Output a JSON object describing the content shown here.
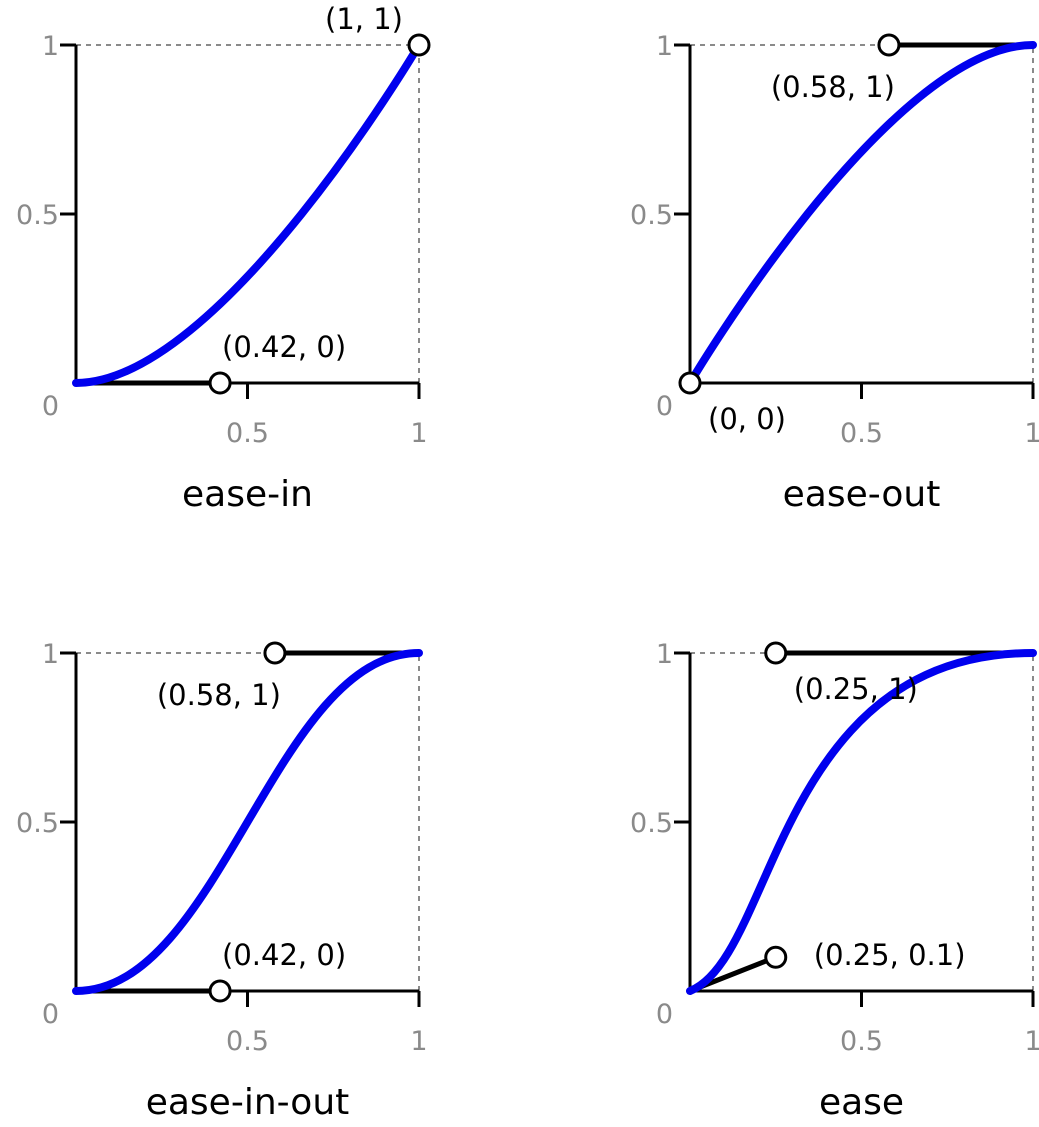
{
  "chart_data": [
    {
      "type": "line",
      "title": "ease-in",
      "xlim": [
        0,
        1
      ],
      "ylim": [
        0,
        1
      ],
      "xticks": [
        {
          "value": 0.5,
          "label": "0.5"
        },
        {
          "value": 1,
          "label": "1"
        }
      ],
      "yticks": [
        {
          "value": 0,
          "label": "0"
        },
        {
          "value": 0.5,
          "label": "0.5"
        },
        {
          "value": 1,
          "label": "1"
        }
      ],
      "bezier": {
        "p0": [
          0,
          0
        ],
        "p1": [
          0.42,
          0
        ],
        "p2": [
          1,
          1
        ],
        "p3": [
          1,
          1
        ]
      },
      "control_points": [
        {
          "x": 0.42,
          "y": 0,
          "label": "(0.42, 0)",
          "label_side": "above-right"
        },
        {
          "x": 1,
          "y": 1,
          "label": "(1, 1)",
          "label_side": "above-left"
        }
      ]
    },
    {
      "type": "line",
      "title": "ease-out",
      "xlim": [
        0,
        1
      ],
      "ylim": [
        0,
        1
      ],
      "xticks": [
        {
          "value": 0.5,
          "label": "0.5"
        },
        {
          "value": 1,
          "label": "1"
        }
      ],
      "yticks": [
        {
          "value": 0,
          "label": "0"
        },
        {
          "value": 0.5,
          "label": "0.5"
        },
        {
          "value": 1,
          "label": "1"
        }
      ],
      "bezier": {
        "p0": [
          0,
          0
        ],
        "p1": [
          0,
          0
        ],
        "p2": [
          0.58,
          1
        ],
        "p3": [
          1,
          1
        ]
      },
      "control_points": [
        {
          "x": 0,
          "y": 0,
          "label": "(0, 0)",
          "label_side": "below-right"
        },
        {
          "x": 0.58,
          "y": 1,
          "label": "(0.58, 1)",
          "label_side": "below-left"
        }
      ]
    },
    {
      "type": "line",
      "title": "ease-in-out",
      "xlim": [
        0,
        1
      ],
      "ylim": [
        0,
        1
      ],
      "xticks": [
        {
          "value": 0.5,
          "label": "0.5"
        },
        {
          "value": 1,
          "label": "1"
        }
      ],
      "yticks": [
        {
          "value": 0,
          "label": "0"
        },
        {
          "value": 0.5,
          "label": "0.5"
        },
        {
          "value": 1,
          "label": "1"
        }
      ],
      "bezier": {
        "p0": [
          0,
          0
        ],
        "p1": [
          0.42,
          0
        ],
        "p2": [
          0.58,
          1
        ],
        "p3": [
          1,
          1
        ]
      },
      "control_points": [
        {
          "x": 0.42,
          "y": 0,
          "label": "(0.42, 0)",
          "label_side": "above-right"
        },
        {
          "x": 0.58,
          "y": 1,
          "label": "(0.58, 1)",
          "label_side": "below-left"
        }
      ]
    },
    {
      "type": "line",
      "title": "ease",
      "xlim": [
        0,
        1
      ],
      "ylim": [
        0,
        1
      ],
      "xticks": [
        {
          "value": 0.5,
          "label": "0.5"
        },
        {
          "value": 1,
          "label": "1"
        }
      ],
      "yticks": [
        {
          "value": 0,
          "label": "0"
        },
        {
          "value": 0.5,
          "label": "0.5"
        },
        {
          "value": 1,
          "label": "1"
        }
      ],
      "bezier": {
        "p0": [
          0,
          0
        ],
        "p1": [
          0.25,
          0.1
        ],
        "p2": [
          0.25,
          1
        ],
        "p3": [
          1,
          1
        ]
      },
      "control_points": [
        {
          "x": 0.25,
          "y": 0.1,
          "label": "(0.25, 0.1)",
          "label_side": "right"
        },
        {
          "x": 0.25,
          "y": 1,
          "label": "(0.25, 1)",
          "label_side": "below-right"
        }
      ]
    }
  ],
  "colors": {
    "curve": "#0000ee",
    "axis": "#000000",
    "handle": "#000000",
    "guide": "#8a8a8a",
    "tick_label": "#8a8a8a",
    "point_fill": "#ffffff"
  }
}
